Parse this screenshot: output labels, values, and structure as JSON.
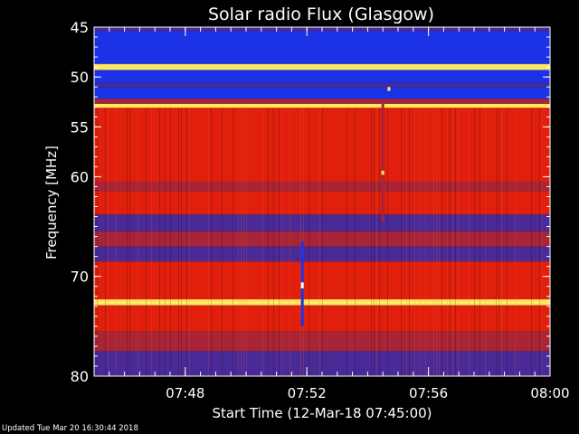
{
  "footer": {
    "updated": "Updated Tue Mar 20 16:30:44 2018"
  },
  "chart_data": {
    "type": "heatmap",
    "title": "Solar radio Flux (Glasgow)",
    "xlabel": "Start Time (12-Mar-18 07:45:00)",
    "ylabel": "Frequency [MHz]",
    "x_range_minutes": [
      0,
      15
    ],
    "y_range_mhz": [
      45,
      80
    ],
    "y_inverted": true,
    "x_ticks": [
      {
        "minutes": 3,
        "label": "07:48"
      },
      {
        "minutes": 7,
        "label": "07:52"
      },
      {
        "minutes": 11,
        "label": "07:56"
      },
      {
        "minutes": 15,
        "label": "08:00"
      }
    ],
    "y_ticks": [
      {
        "mhz": 45,
        "label": "45"
      },
      {
        "mhz": 50,
        "label": "50"
      },
      {
        "mhz": 55,
        "label": "55"
      },
      {
        "mhz": 60,
        "label": "60"
      },
      {
        "mhz": 70,
        "label": "70"
      },
      {
        "mhz": 80,
        "label": "80"
      }
    ],
    "colors": {
      "background": "#000000",
      "low": "#1c32e6",
      "mid_low": "#4a2a96",
      "mid": "#a82436",
      "high": "#e0200c",
      "peak": "#ffe860",
      "saturated": "#ffffff"
    },
    "bands": [
      {
        "from_mhz": 44.9,
        "to_mhz": 45.4,
        "level": "mid_low"
      },
      {
        "from_mhz": 45.4,
        "to_mhz": 48.7,
        "level": "low"
      },
      {
        "from_mhz": 48.7,
        "to_mhz": 49.3,
        "level": "peak"
      },
      {
        "from_mhz": 49.3,
        "to_mhz": 50.6,
        "level": "low"
      },
      {
        "from_mhz": 50.6,
        "to_mhz": 51.0,
        "level": "mid_low"
      },
      {
        "from_mhz": 51.0,
        "to_mhz": 52.2,
        "level": "low"
      },
      {
        "from_mhz": 52.2,
        "to_mhz": 52.7,
        "level": "mid"
      },
      {
        "from_mhz": 52.7,
        "to_mhz": 53.1,
        "level": "peak"
      },
      {
        "from_mhz": 53.1,
        "to_mhz": 60.5,
        "level": "high"
      },
      {
        "from_mhz": 60.5,
        "to_mhz": 61.5,
        "level": "mid"
      },
      {
        "from_mhz": 61.5,
        "to_mhz": 63.8,
        "level": "high"
      },
      {
        "from_mhz": 63.8,
        "to_mhz": 65.5,
        "level": "mid_low"
      },
      {
        "from_mhz": 65.5,
        "to_mhz": 67.0,
        "level": "mid"
      },
      {
        "from_mhz": 67.0,
        "to_mhz": 68.5,
        "level": "mid_low"
      },
      {
        "from_mhz": 68.5,
        "to_mhz": 72.3,
        "level": "high"
      },
      {
        "from_mhz": 72.3,
        "to_mhz": 72.9,
        "level": "peak"
      },
      {
        "from_mhz": 72.9,
        "to_mhz": 75.5,
        "level": "high"
      },
      {
        "from_mhz": 75.5,
        "to_mhz": 77.5,
        "level": "mid"
      },
      {
        "from_mhz": 77.5,
        "to_mhz": 80.1,
        "level": "mid_low"
      }
    ],
    "events": [
      {
        "minute": 6.85,
        "from_mhz": 66.5,
        "to_mhz": 75.0,
        "level": "low"
      },
      {
        "minute": 6.85,
        "from_mhz": 70.6,
        "to_mhz": 71.2,
        "level": "saturated"
      },
      {
        "minute": 9.5,
        "from_mhz": 52.5,
        "to_mhz": 64.5,
        "level": "mid"
      },
      {
        "minute": 9.5,
        "from_mhz": 59.4,
        "to_mhz": 59.8,
        "level": "peak"
      },
      {
        "minute": 9.7,
        "from_mhz": 51.0,
        "to_mhz": 51.4,
        "level": "peak"
      }
    ]
  }
}
